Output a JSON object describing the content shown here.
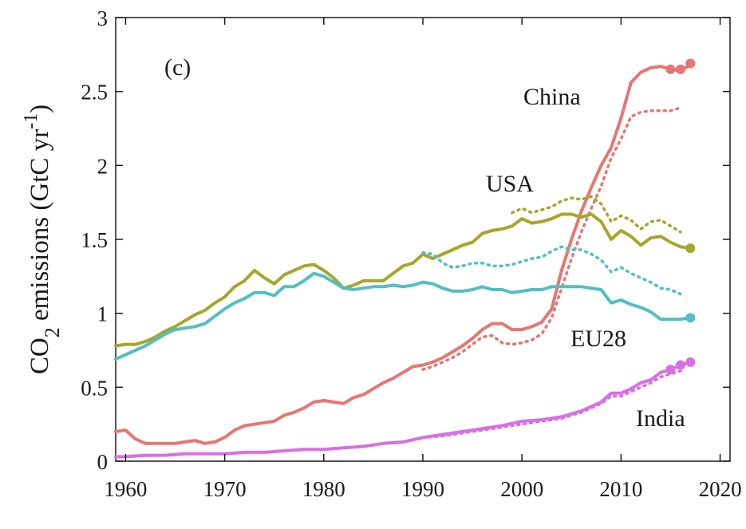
{
  "chart_data": {
    "type": "line",
    "panel_label": "(c)",
    "ylabel_main": "CO",
    "ylabel_sub": "2",
    "ylabel_rest": " emissions (GtC yr",
    "ylabel_sup": "-1",
    "ylabel_end": ")",
    "xlim": [
      1959,
      2021
    ],
    "ylim": [
      0,
      3
    ],
    "xticks": [
      1960,
      1970,
      1980,
      1990,
      2000,
      2010,
      2020
    ],
    "yticks": [
      0,
      0.5,
      1,
      1.5,
      2,
      2.5,
      3
    ],
    "series": [
      {
        "name": "China",
        "color": "#e87572",
        "solid": [
          [
            1959,
            0.2
          ],
          [
            1960,
            0.21
          ],
          [
            1961,
            0.15
          ],
          [
            1962,
            0.12
          ],
          [
            1963,
            0.12
          ],
          [
            1964,
            0.12
          ],
          [
            1965,
            0.12
          ],
          [
            1966,
            0.13
          ],
          [
            1967,
            0.14
          ],
          [
            1968,
            0.12
          ],
          [
            1969,
            0.13
          ],
          [
            1970,
            0.16
          ],
          [
            1971,
            0.21
          ],
          [
            1972,
            0.24
          ],
          [
            1973,
            0.25
          ],
          [
            1974,
            0.26
          ],
          [
            1975,
            0.27
          ],
          [
            1976,
            0.31
          ],
          [
            1977,
            0.33
          ],
          [
            1978,
            0.36
          ],
          [
            1979,
            0.4
          ],
          [
            1980,
            0.41
          ],
          [
            1981,
            0.4
          ],
          [
            1982,
            0.39
          ],
          [
            1983,
            0.43
          ],
          [
            1984,
            0.45
          ],
          [
            1985,
            0.49
          ],
          [
            1986,
            0.53
          ],
          [
            1987,
            0.56
          ],
          [
            1988,
            0.6
          ],
          [
            1989,
            0.64
          ],
          [
            1990,
            0.65
          ],
          [
            1991,
            0.67
          ],
          [
            1992,
            0.7
          ],
          [
            1993,
            0.74
          ],
          [
            1994,
            0.78
          ],
          [
            1995,
            0.83
          ],
          [
            1996,
            0.89
          ],
          [
            1997,
            0.93
          ],
          [
            1998,
            0.93
          ],
          [
            1999,
            0.89
          ],
          [
            2000,
            0.89
          ],
          [
            2001,
            0.91
          ],
          [
            2002,
            0.94
          ],
          [
            2003,
            1.03
          ],
          [
            2004,
            1.29
          ],
          [
            2005,
            1.5
          ],
          [
            2006,
            1.69
          ],
          [
            2007,
            1.85
          ],
          [
            2008,
            2.0
          ],
          [
            2009,
            2.12
          ],
          [
            2010,
            2.32
          ],
          [
            2011,
            2.56
          ],
          [
            2012,
            2.63
          ],
          [
            2013,
            2.66
          ],
          [
            2014,
            2.67
          ],
          [
            2015,
            2.65
          ],
          [
            2016,
            2.64
          ],
          [
            2017,
            2.68
          ]
        ],
        "dotted": [
          [
            1990,
            0.62
          ],
          [
            1991,
            0.64
          ],
          [
            1992,
            0.67
          ],
          [
            1993,
            0.7
          ],
          [
            1994,
            0.74
          ],
          [
            1995,
            0.79
          ],
          [
            1996,
            0.84
          ],
          [
            1997,
            0.85
          ],
          [
            1998,
            0.8
          ],
          [
            1999,
            0.79
          ],
          [
            2000,
            0.8
          ],
          [
            2001,
            0.82
          ],
          [
            2002,
            0.86
          ],
          [
            2003,
            0.97
          ],
          [
            2004,
            1.17
          ],
          [
            2005,
            1.37
          ],
          [
            2006,
            1.55
          ],
          [
            2007,
            1.71
          ],
          [
            2008,
            1.86
          ],
          [
            2009,
            2.05
          ],
          [
            2010,
            2.18
          ],
          [
            2011,
            2.33
          ],
          [
            2012,
            2.36
          ],
          [
            2013,
            2.37
          ],
          [
            2014,
            2.37
          ],
          [
            2015,
            2.37
          ],
          [
            2016,
            2.39
          ]
        ],
        "markers": [
          [
            2015,
            2.65
          ],
          [
            2016,
            2.65
          ],
          [
            2017,
            2.69
          ]
        ]
      },
      {
        "name": "USA",
        "color": "#a6a62a",
        "solid": [
          [
            1959,
            0.78
          ],
          [
            1960,
            0.79
          ],
          [
            1961,
            0.79
          ],
          [
            1962,
            0.81
          ],
          [
            1963,
            0.84
          ],
          [
            1964,
            0.88
          ],
          [
            1965,
            0.91
          ],
          [
            1966,
            0.95
          ],
          [
            1967,
            0.99
          ],
          [
            1968,
            1.02
          ],
          [
            1969,
            1.07
          ],
          [
            1970,
            1.11
          ],
          [
            1971,
            1.18
          ],
          [
            1972,
            1.22
          ],
          [
            1973,
            1.29
          ],
          [
            1974,
            1.24
          ],
          [
            1975,
            1.2
          ],
          [
            1976,
            1.26
          ],
          [
            1977,
            1.29
          ],
          [
            1978,
            1.32
          ],
          [
            1979,
            1.33
          ],
          [
            1980,
            1.29
          ],
          [
            1981,
            1.24
          ],
          [
            1982,
            1.17
          ],
          [
            1983,
            1.19
          ],
          [
            1984,
            1.22
          ],
          [
            1985,
            1.22
          ],
          [
            1986,
            1.22
          ],
          [
            1987,
            1.27
          ],
          [
            1988,
            1.32
          ],
          [
            1989,
            1.34
          ],
          [
            1990,
            1.4
          ],
          [
            1991,
            1.37
          ],
          [
            1992,
            1.4
          ],
          [
            1993,
            1.43
          ],
          [
            1994,
            1.46
          ],
          [
            1995,
            1.48
          ],
          [
            1996,
            1.54
          ],
          [
            1997,
            1.56
          ],
          [
            1998,
            1.57
          ],
          [
            1999,
            1.59
          ],
          [
            2000,
            1.64
          ],
          [
            2001,
            1.61
          ],
          [
            2002,
            1.62
          ],
          [
            2003,
            1.64
          ],
          [
            2004,
            1.67
          ],
          [
            2005,
            1.67
          ],
          [
            2006,
            1.65
          ],
          [
            2007,
            1.67
          ],
          [
            2008,
            1.62
          ],
          [
            2009,
            1.5
          ],
          [
            2010,
            1.56
          ],
          [
            2011,
            1.52
          ],
          [
            2012,
            1.46
          ],
          [
            2013,
            1.51
          ],
          [
            2014,
            1.52
          ],
          [
            2015,
            1.48
          ],
          [
            2016,
            1.45
          ],
          [
            2017,
            1.44
          ]
        ],
        "dotted": [
          [
            1999,
            1.68
          ],
          [
            2000,
            1.71
          ],
          [
            2001,
            1.68
          ],
          [
            2002,
            1.7
          ],
          [
            2003,
            1.72
          ],
          [
            2004,
            1.76
          ],
          [
            2005,
            1.78
          ],
          [
            2006,
            1.77
          ],
          [
            2007,
            1.79
          ],
          [
            2008,
            1.74
          ],
          [
            2009,
            1.62
          ],
          [
            2010,
            1.66
          ],
          [
            2011,
            1.63
          ],
          [
            2012,
            1.57
          ],
          [
            2013,
            1.62
          ],
          [
            2014,
            1.63
          ],
          [
            2015,
            1.59
          ],
          [
            2016,
            1.55
          ]
        ],
        "markers": [
          [
            2017,
            1.44
          ]
        ]
      },
      {
        "name": "EU28",
        "color": "#52bfc4",
        "solid": [
          [
            1959,
            0.69
          ],
          [
            1960,
            0.72
          ],
          [
            1961,
            0.75
          ],
          [
            1962,
            0.78
          ],
          [
            1963,
            0.82
          ],
          [
            1964,
            0.86
          ],
          [
            1965,
            0.89
          ],
          [
            1966,
            0.9
          ],
          [
            1967,
            0.91
          ],
          [
            1968,
            0.93
          ],
          [
            1969,
            0.98
          ],
          [
            1970,
            1.03
          ],
          [
            1971,
            1.07
          ],
          [
            1972,
            1.1
          ],
          [
            1973,
            1.14
          ],
          [
            1974,
            1.14
          ],
          [
            1975,
            1.12
          ],
          [
            1976,
            1.18
          ],
          [
            1977,
            1.18
          ],
          [
            1978,
            1.22
          ],
          [
            1979,
            1.27
          ],
          [
            1980,
            1.25
          ],
          [
            1981,
            1.21
          ],
          [
            1982,
            1.17
          ],
          [
            1983,
            1.16
          ],
          [
            1984,
            1.17
          ],
          [
            1985,
            1.18
          ],
          [
            1986,
            1.18
          ],
          [
            1987,
            1.19
          ],
          [
            1988,
            1.18
          ],
          [
            1989,
            1.19
          ],
          [
            1990,
            1.21
          ],
          [
            1991,
            1.2
          ],
          [
            1992,
            1.17
          ],
          [
            1993,
            1.15
          ],
          [
            1994,
            1.15
          ],
          [
            1995,
            1.16
          ],
          [
            1996,
            1.18
          ],
          [
            1997,
            1.16
          ],
          [
            1998,
            1.16
          ],
          [
            1999,
            1.14
          ],
          [
            2000,
            1.15
          ],
          [
            2001,
            1.16
          ],
          [
            2002,
            1.16
          ],
          [
            2003,
            1.18
          ],
          [
            2004,
            1.18
          ],
          [
            2005,
            1.18
          ],
          [
            2006,
            1.18
          ],
          [
            2007,
            1.17
          ],
          [
            2008,
            1.16
          ],
          [
            2009,
            1.07
          ],
          [
            2010,
            1.09
          ],
          [
            2011,
            1.06
          ],
          [
            2012,
            1.04
          ],
          [
            2013,
            1.01
          ],
          [
            2014,
            0.96
          ],
          [
            2015,
            0.96
          ],
          [
            2016,
            0.96
          ],
          [
            2017,
            0.97
          ]
        ],
        "dotted": [
          [
            1990,
            1.41
          ],
          [
            1991,
            1.4
          ],
          [
            1992,
            1.34
          ],
          [
            1993,
            1.31
          ],
          [
            1994,
            1.32
          ],
          [
            1995,
            1.34
          ],
          [
            1996,
            1.34
          ],
          [
            1997,
            1.32
          ],
          [
            1998,
            1.32
          ],
          [
            1999,
            1.33
          ],
          [
            2000,
            1.35
          ],
          [
            2001,
            1.37
          ],
          [
            2002,
            1.38
          ],
          [
            2003,
            1.42
          ],
          [
            2004,
            1.45
          ],
          [
            2005,
            1.43
          ],
          [
            2006,
            1.43
          ],
          [
            2007,
            1.4
          ],
          [
            2008,
            1.36
          ],
          [
            2009,
            1.28
          ],
          [
            2010,
            1.31
          ],
          [
            2011,
            1.27
          ],
          [
            2012,
            1.24
          ],
          [
            2013,
            1.21
          ],
          [
            2014,
            1.17
          ],
          [
            2015,
            1.16
          ],
          [
            2016,
            1.13
          ]
        ],
        "markers": [
          [
            2017,
            0.97
          ]
        ]
      },
      {
        "name": "India",
        "color": "#d96ee6",
        "solid": [
          [
            1959,
            0.03
          ],
          [
            1960,
            0.03
          ],
          [
            1962,
            0.04
          ],
          [
            1964,
            0.04
          ],
          [
            1966,
            0.05
          ],
          [
            1968,
            0.05
          ],
          [
            1970,
            0.05
          ],
          [
            1972,
            0.06
          ],
          [
            1974,
            0.06
          ],
          [
            1976,
            0.07
          ],
          [
            1978,
            0.08
          ],
          [
            1980,
            0.08
          ],
          [
            1982,
            0.09
          ],
          [
            1984,
            0.1
          ],
          [
            1986,
            0.12
          ],
          [
            1988,
            0.13
          ],
          [
            1990,
            0.16
          ],
          [
            1992,
            0.18
          ],
          [
            1994,
            0.2
          ],
          [
            1996,
            0.22
          ],
          [
            1998,
            0.24
          ],
          [
            2000,
            0.27
          ],
          [
            2002,
            0.28
          ],
          [
            2004,
            0.3
          ],
          [
            2006,
            0.34
          ],
          [
            2008,
            0.4
          ],
          [
            2009,
            0.46
          ],
          [
            2010,
            0.46
          ],
          [
            2011,
            0.49
          ],
          [
            2012,
            0.53
          ],
          [
            2013,
            0.55
          ],
          [
            2014,
            0.6
          ],
          [
            2015,
            0.62
          ],
          [
            2016,
            0.65
          ],
          [
            2017,
            0.67
          ]
        ],
        "dotted": [
          [
            1990,
            0.16
          ],
          [
            1992,
            0.17
          ],
          [
            1994,
            0.19
          ],
          [
            1996,
            0.21
          ],
          [
            1998,
            0.23
          ],
          [
            2000,
            0.25
          ],
          [
            2002,
            0.27
          ],
          [
            2004,
            0.29
          ],
          [
            2006,
            0.33
          ],
          [
            2008,
            0.39
          ],
          [
            2009,
            0.44
          ],
          [
            2010,
            0.44
          ],
          [
            2011,
            0.47
          ],
          [
            2012,
            0.5
          ],
          [
            2013,
            0.53
          ],
          [
            2014,
            0.57
          ],
          [
            2015,
            0.59
          ],
          [
            2016,
            0.61
          ]
        ],
        "markers": [
          [
            2015,
            0.62
          ],
          [
            2016,
            0.65
          ],
          [
            2017,
            0.67
          ]
        ]
      }
    ]
  }
}
